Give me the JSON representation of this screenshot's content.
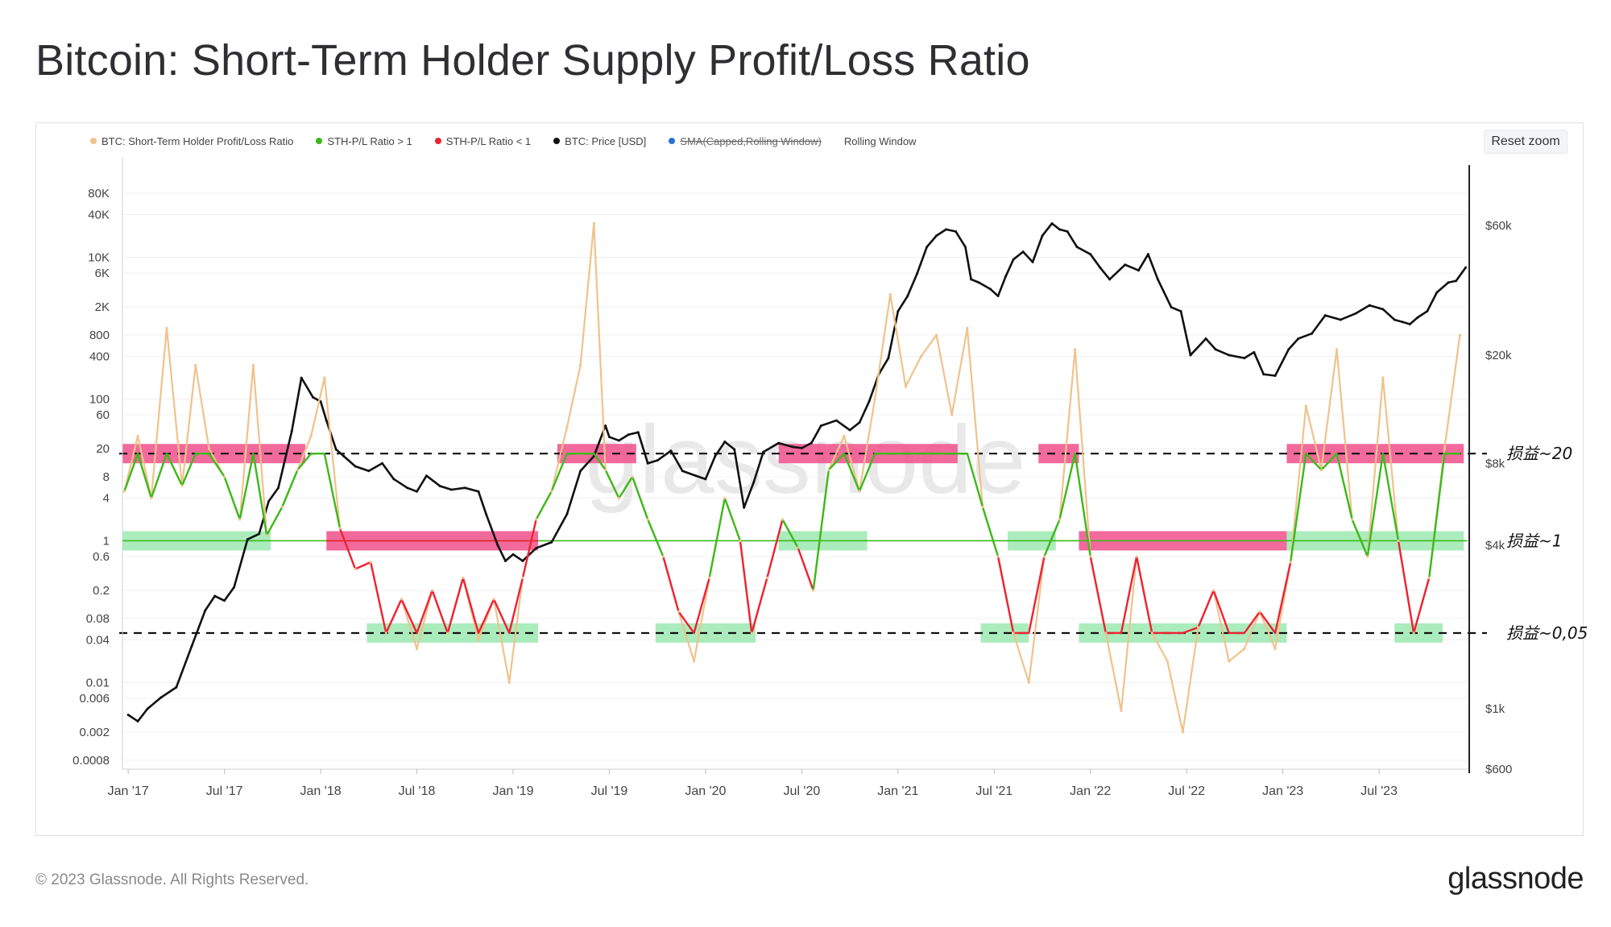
{
  "title": "Bitcoin: Short-Term Holder Supply Profit/Loss Ratio",
  "reset_zoom_label": "Reset zoom",
  "legend": [
    {
      "label": "BTC: Short-Term Holder Profit/Loss Ratio",
      "color": "#f0c28c",
      "struck": false
    },
    {
      "label": "STH-P/L Ratio > 1",
      "color": "#3cb91a",
      "struck": false
    },
    {
      "label": "STH-P/L Ratio < 1",
      "color": "#ee2233",
      "struck": false
    },
    {
      "label": "BTC: Price [USD]",
      "color": "#111111",
      "struck": false
    },
    {
      "label": "SMA(Capped,Rolling Window)",
      "color": "#2b6fd6",
      "struck": true
    },
    {
      "label": "Rolling Window",
      "color": "",
      "struck": false
    }
  ],
  "watermark": "glassnode",
  "footer": {
    "copyright": "© 2023 Glassnode. All Rights Reserved.",
    "logo": "glassnode"
  },
  "colors": {
    "ratio_line": "#f0c28c",
    "above_one": "#3cb91a",
    "below_one": "#ee2233",
    "price": "#111111",
    "pink_band": "#f0508a",
    "green_band": "#8fe6a6"
  },
  "chart_data": {
    "type": "line",
    "x_tick_labels": [
      "Jan '17",
      "Jul '17",
      "Jan '18",
      "Jul '18",
      "Jan '19",
      "Jul '19",
      "Jan '20",
      "Jul '20",
      "Jan '21",
      "Jul '21",
      "Jan '22",
      "Jul '22",
      "Jan '23",
      "Jul '23"
    ],
    "x_ticks": [
      2017.0,
      2017.5,
      2018.0,
      2018.5,
      2019.0,
      2019.5,
      2020.0,
      2020.5,
      2021.0,
      2021.5,
      2022.0,
      2022.5,
      2023.0,
      2023.5
    ],
    "x_range": [
      2016.97,
      2023.96
    ],
    "left_axis": {
      "scale": "log",
      "tick_labels": [
        "80K",
        "40K",
        "10K",
        "6K",
        "2K",
        "800",
        "400",
        "100",
        "60",
        "20",
        "8",
        "4",
        "1",
        "0.6",
        "0.2",
        "0.08",
        "0.04",
        "0.01",
        "0.006",
        "0.002",
        "0.0008"
      ],
      "ticks": [
        80000,
        40000,
        10000,
        6000,
        2000,
        800,
        400,
        100,
        60,
        20,
        8,
        4,
        1,
        0.6,
        0.2,
        0.08,
        0.04,
        0.01,
        0.006,
        0.002,
        0.0008
      ],
      "range": [
        0.0006,
        200000
      ]
    },
    "right_axis": {
      "scale": "log",
      "tick_labels": [
        "$60k",
        "$20k",
        "$8k",
        "$4k",
        "$1k",
        "$600"
      ],
      "ticks": [
        60000,
        20000,
        8000,
        4000,
        1000,
        600
      ],
      "range": [
        600,
        100000
      ]
    },
    "reference_lines": [
      {
        "value": 17,
        "style": "dashed",
        "annotation": "损益~20"
      },
      {
        "value": 1,
        "style": "solid",
        "annotation": "损益~1"
      },
      {
        "value": 0.05,
        "style": "dashed",
        "annotation": "损益~0,05"
      }
    ],
    "highlight_bands": [
      {
        "level": "20",
        "color": "pink",
        "x": [
          [
            2016.97,
            2017.92
          ],
          [
            2019.23,
            2019.64
          ],
          [
            2020.38,
            2021.31
          ],
          [
            2021.73,
            2021.94
          ],
          [
            2023.02,
            2023.94
          ]
        ]
      },
      {
        "level": "1",
        "color": "green",
        "x": [
          [
            2016.97,
            2017.74
          ],
          [
            2020.38,
            2020.84
          ],
          [
            2021.57,
            2021.82
          ],
          [
            2023.02,
            2023.94
          ]
        ]
      },
      {
        "level": "1",
        "color": "pink",
        "x": [
          [
            2018.03,
            2019.13
          ],
          [
            2021.94,
            2023.02
          ]
        ]
      },
      {
        "level": "0.05",
        "color": "green",
        "x": [
          [
            2018.24,
            2019.13
          ],
          [
            2019.74,
            2020.26
          ],
          [
            2021.43,
            2021.68
          ],
          [
            2021.94,
            2023.02
          ],
          [
            2023.58,
            2023.83
          ]
        ]
      }
    ],
    "series": [
      {
        "name": "BTC: Price [USD]",
        "axis": "right",
        "x": [
          2017.0,
          2017.05,
          2017.1,
          2017.17,
          2017.25,
          2017.33,
          2017.4,
          2017.45,
          2017.5,
          2017.55,
          2017.62,
          2017.68,
          2017.73,
          2017.78,
          2017.85,
          2017.9,
          2017.96,
          2018.0,
          2018.03,
          2018.08,
          2018.12,
          2018.18,
          2018.25,
          2018.32,
          2018.38,
          2018.45,
          2018.5,
          2018.55,
          2018.62,
          2018.68,
          2018.75,
          2018.82,
          2018.86,
          2018.92,
          2018.96,
          2019.0,
          2019.05,
          2019.12,
          2019.2,
          2019.28,
          2019.35,
          2019.42,
          2019.48,
          2019.5,
          2019.55,
          2019.6,
          2019.65,
          2019.7,
          2019.75,
          2019.82,
          2019.88,
          2019.95,
          2020.0,
          2020.05,
          2020.1,
          2020.15,
          2020.2,
          2020.25,
          2020.3,
          2020.38,
          2020.45,
          2020.5,
          2020.55,
          2020.6,
          2020.68,
          2020.75,
          2020.8,
          2020.85,
          2020.9,
          2020.95,
          2021.0,
          2021.05,
          2021.1,
          2021.15,
          2021.2,
          2021.25,
          2021.3,
          2021.35,
          2021.38,
          2021.42,
          2021.48,
          2021.52,
          2021.56,
          2021.6,
          2021.65,
          2021.7,
          2021.75,
          2021.8,
          2021.84,
          2021.88,
          2021.93,
          2022.0,
          2022.05,
          2022.1,
          2022.18,
          2022.25,
          2022.3,
          2022.35,
          2022.42,
          2022.47,
          2022.52,
          2022.6,
          2022.65,
          2022.72,
          2022.8,
          2022.85,
          2022.9,
          2022.96,
          2023.03,
          2023.08,
          2023.15,
          2023.22,
          2023.3,
          2023.38,
          2023.45,
          2023.52,
          2023.58,
          2023.62,
          2023.66,
          2023.7,
          2023.75,
          2023.8,
          2023.86,
          2023.9,
          2023.95
        ],
        "y": [
          950,
          900,
          1000,
          1100,
          1200,
          1700,
          2300,
          2600,
          2500,
          2800,
          4200,
          4400,
          5800,
          6500,
          10500,
          16500,
          14000,
          13500,
          11500,
          9000,
          8500,
          7800,
          7500,
          8000,
          7000,
          6500,
          6300,
          7200,
          6600,
          6400,
          6500,
          6300,
          5200,
          4000,
          3500,
          3700,
          3500,
          3900,
          4100,
          5200,
          7500,
          8500,
          11000,
          10000,
          9700,
          10200,
          10400,
          8000,
          8200,
          8900,
          7500,
          7200,
          7000,
          8500,
          9600,
          9000,
          5500,
          6800,
          8800,
          9500,
          9200,
          9100,
          9500,
          11000,
          11500,
          10600,
          11300,
          13500,
          17000,
          19500,
          29000,
          33000,
          40000,
          50000,
          55000,
          58000,
          57000,
          50000,
          38000,
          37000,
          35000,
          33000,
          39000,
          45000,
          48000,
          44000,
          55000,
          61000,
          58000,
          57000,
          50000,
          47000,
          42000,
          38000,
          43000,
          41000,
          47000,
          38000,
          30000,
          29000,
          20000,
          23000,
          21000,
          20000,
          19500,
          20500,
          17000,
          16800,
          21000,
          23000,
          24000,
          28000,
          27000,
          28500,
          30500,
          29500,
          27000,
          26500,
          26000,
          27500,
          29000,
          34000,
          37000,
          37500,
          42000
        ]
      },
      {
        "name": "BTC: Short-Term Holder Profit/Loss Ratio",
        "axis": "left",
        "x": [
          2016.98,
          2017.05,
          2017.12,
          2017.2,
          2017.28,
          2017.35,
          2017.42,
          2017.5,
          2017.58,
          2017.65,
          2017.72,
          2017.8,
          2017.88,
          2017.95,
          2018.02,
          2018.1,
          2018.18,
          2018.26,
          2018.34,
          2018.42,
          2018.5,
          2018.58,
          2018.66,
          2018.74,
          2018.82,
          2018.9,
          2018.98,
          2019.05,
          2019.12,
          2019.2,
          2019.28,
          2019.35,
          2019.42,
          2019.48,
          2019.55,
          2019.62,
          2019.7,
          2019.78,
          2019.86,
          2019.94,
          2020.02,
          2020.1,
          2020.18,
          2020.24,
          2020.32,
          2020.4,
          2020.48,
          2020.56,
          2020.64,
          2020.72,
          2020.8,
          2020.88,
          2020.96,
          2021.04,
          2021.12,
          2021.2,
          2021.28,
          2021.36,
          2021.44,
          2021.52,
          2021.6,
          2021.68,
          2021.76,
          2021.84,
          2021.92,
          2022.0,
          2022.08,
          2022.16,
          2022.24,
          2022.32,
          2022.4,
          2022.48,
          2022.56,
          2022.64,
          2022.72,
          2022.8,
          2022.88,
          2022.96,
          2023.04,
          2023.12,
          2023.2,
          2023.28,
          2023.36,
          2023.44,
          2023.52,
          2023.6,
          2023.68,
          2023.76,
          2023.84,
          2023.92
        ],
        "y": [
          5,
          30,
          4,
          1000,
          6,
          300,
          20,
          8,
          2,
          300,
          1.2,
          3,
          10,
          30,
          200,
          1.5,
          0.4,
          0.5,
          0.05,
          0.15,
          0.03,
          0.2,
          0.05,
          0.3,
          0.04,
          0.15,
          0.01,
          0.3,
          2,
          5,
          40,
          300,
          30000,
          10,
          4,
          8,
          2,
          0.6,
          0.1,
          0.02,
          0.3,
          4,
          1,
          0.05,
          0.3,
          2,
          0.8,
          0.2,
          10,
          30,
          5,
          100,
          3000,
          150,
          400,
          800,
          60,
          1000,
          3,
          0.6,
          0.05,
          0.01,
          0.6,
          2,
          500,
          0.6,
          0.05,
          0.004,
          0.6,
          0.05,
          0.02,
          0.002,
          0.06,
          0.2,
          0.02,
          0.03,
          0.1,
          0.03,
          0.5,
          80,
          10,
          500,
          2,
          0.6,
          200,
          1,
          0.05,
          0.3,
          20,
          800
        ]
      }
    ]
  }
}
